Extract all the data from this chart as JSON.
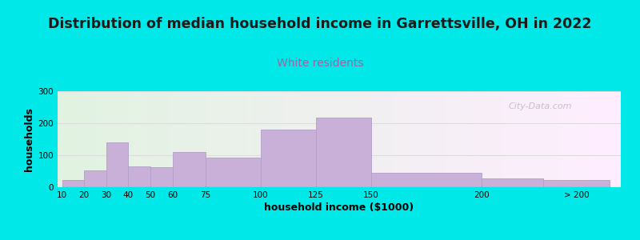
{
  "title": "Distribution of median household income in Garrettsville, OH in 2022",
  "subtitle": "White residents",
  "xlabel": "household income ($1000)",
  "ylabel": "households",
  "title_fontsize": 12.5,
  "subtitle_fontsize": 10,
  "title_color": "#1a1a1a",
  "subtitle_color": "#9966aa",
  "bar_color": "#c8b0d8",
  "bar_edge_color": "#b0a0c8",
  "background_outer": "#00e8e8",
  "ylim": [
    0,
    300
  ],
  "yticks": [
    0,
    100,
    200,
    300
  ],
  "left_edges": [
    10,
    20,
    30,
    40,
    50,
    60,
    75,
    100,
    125,
    150,
    200,
    228
  ],
  "right_edges": [
    20,
    30,
    40,
    50,
    60,
    75,
    100,
    125,
    150,
    200,
    228,
    258
  ],
  "bar_heights": [
    22,
    52,
    140,
    65,
    62,
    110,
    93,
    180,
    218,
    45,
    28,
    22
  ],
  "xtick_positions": [
    10,
    20,
    30,
    40,
    50,
    60,
    75,
    100,
    125,
    150,
    200,
    243
  ],
  "xtick_labels": [
    "10",
    "20",
    "30",
    "40",
    "50",
    "60",
    "75",
    "100",
    "125",
    "150",
    "200",
    "> 200"
  ],
  "xlim": [
    8,
    263
  ],
  "watermark": "City-Data.com",
  "grid_color": "#dddddd"
}
